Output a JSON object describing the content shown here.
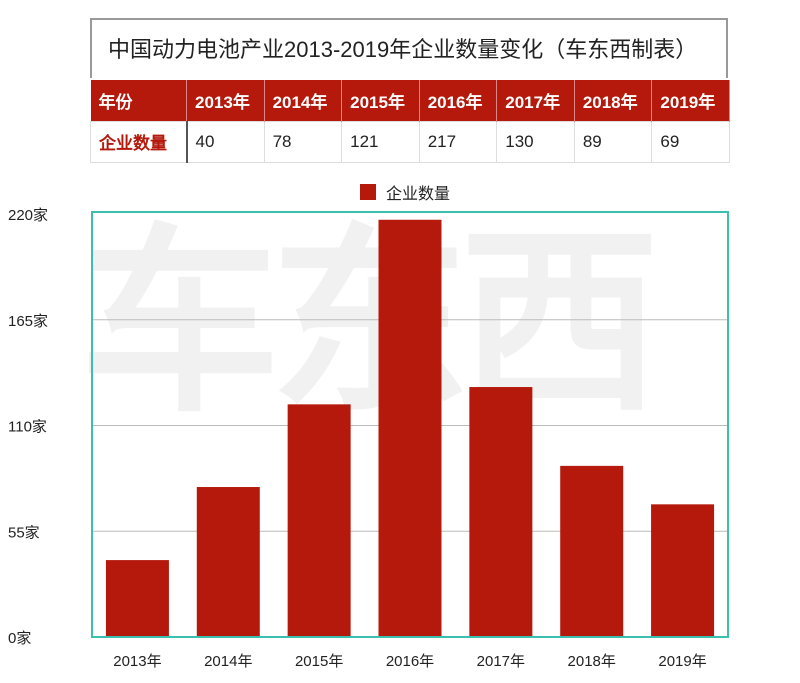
{
  "title": "中国动力电池产业2013-2019年企业数量变化（车东西制表）",
  "table": {
    "header_label": "年份",
    "row_label": "企业数量",
    "years": [
      "2013年",
      "2014年",
      "2015年",
      "2016年",
      "2017年",
      "2018年",
      "2019年"
    ],
    "values": [
      "40",
      "78",
      "121",
      "217",
      "130",
      "89",
      "69"
    ]
  },
  "watermark": "车东西",
  "chart_data": {
    "type": "bar",
    "categories": [
      "2013年",
      "2014年",
      "2015年",
      "2016年",
      "2017年",
      "2018年",
      "2019年"
    ],
    "series": [
      {
        "name": "企业数量",
        "values": [
          40,
          78,
          121,
          217,
          130,
          89,
          69
        ]
      }
    ],
    "yticks": [
      "0家",
      "55家",
      "110家",
      "165家",
      "220家"
    ],
    "ylim": [
      0,
      220
    ],
    "grid": true,
    "legend": "top",
    "colors": {
      "bar": "#b4190b",
      "frame": "#3bbfae"
    }
  }
}
